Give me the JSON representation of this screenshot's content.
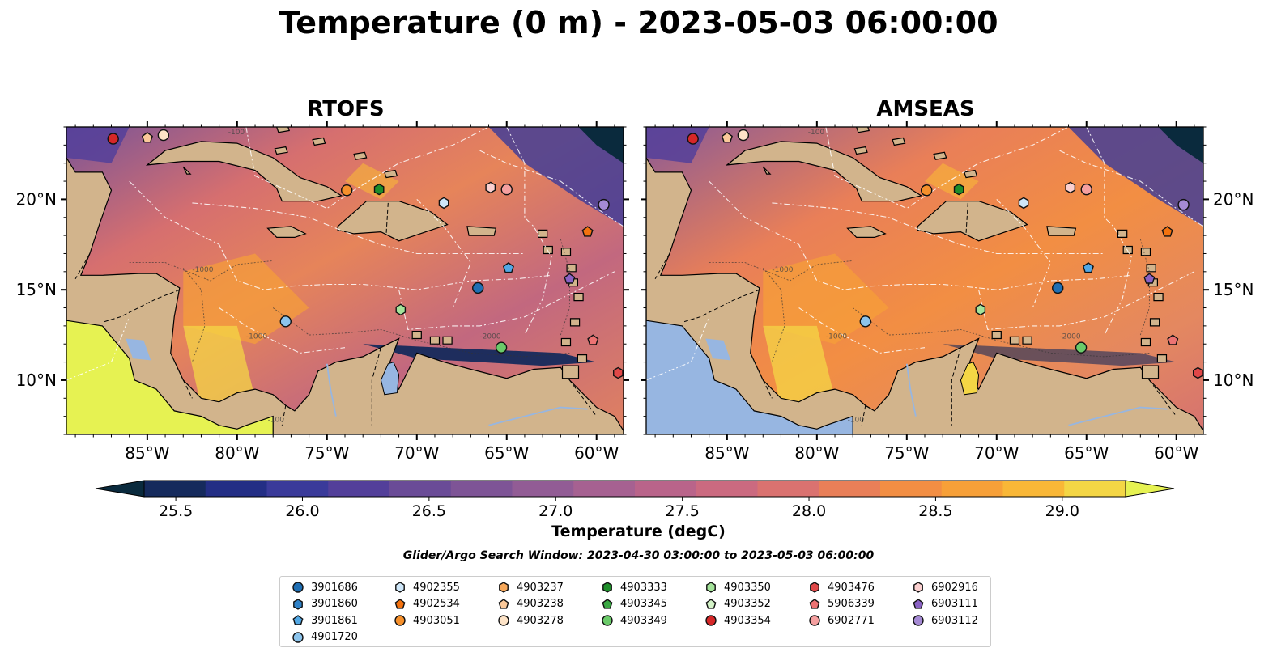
{
  "figure": {
    "title": "Temperature (0 m) - 2023-05-03 06:00:00",
    "panels": [
      {
        "title": "RTOFS"
      },
      {
        "title": "AMSEAS"
      }
    ],
    "lon_ticks": [
      "85°W",
      "80°W",
      "75°W",
      "70°W",
      "65°W",
      "60°W"
    ],
    "lat_ticks": [
      "20°N",
      "15°N",
      "10°N"
    ],
    "extent": {
      "lon": [
        -89.5,
        -58.5
      ],
      "lat": [
        7,
        24
      ]
    },
    "contour_labels": [
      "-100",
      "-1000",
      "-2000"
    ],
    "colorbar": {
      "label": "Temperature (degC)",
      "ticks": [
        "25.5",
        "26.0",
        "26.5",
        "27.0",
        "27.5",
        "28.0",
        "28.5",
        "29.0"
      ],
      "range": [
        25.375,
        29.25
      ],
      "extend": "both",
      "colors": [
        "#0a2a3d",
        "#152a5c",
        "#232e85",
        "#3a3a9a",
        "#533f9a",
        "#6a4b97",
        "#7e5496",
        "#925c95",
        "#a66191",
        "#b9648a",
        "#cb6a80",
        "#da7270",
        "#e97f58",
        "#f28e43",
        "#f7a038",
        "#f9b737",
        "#f4d645",
        "#e6f252"
      ]
    },
    "search_window": "Glider/Argo Search Window: 2023-04-30 03:00:00 to 2023-05-03 06:00:00",
    "colors": {
      "land": "#d2b48c",
      "lakes": "#97b6e1",
      "ocean_mid": "#8a5a96"
    }
  },
  "legend": [
    {
      "id": "3901686",
      "marker": "circle",
      "color": "#1f6fb4"
    },
    {
      "id": "3901860",
      "marker": "hexagon",
      "color": "#2f82c8"
    },
    {
      "id": "3901861",
      "marker": "pentagon",
      "color": "#52a8e5"
    },
    {
      "id": "4901720",
      "marker": "circle",
      "color": "#8cc4ec"
    },
    {
      "id": "4902355",
      "marker": "hexagon",
      "color": "#cfe7f9"
    },
    {
      "id": "4902534",
      "marker": "pentagon",
      "color": "#f4720e"
    },
    {
      "id": "4903051",
      "marker": "circle",
      "color": "#f6902b"
    },
    {
      "id": "4903237",
      "marker": "hexagon",
      "color": "#f7a85a"
    },
    {
      "id": "4903238",
      "marker": "pentagon",
      "color": "#fbc99a"
    },
    {
      "id": "4903278",
      "marker": "circle",
      "color": "#fde3c7"
    },
    {
      "id": "4903333",
      "marker": "hexagon",
      "color": "#1e8e2a"
    },
    {
      "id": "4903345",
      "marker": "pentagon",
      "color": "#3aa843"
    },
    {
      "id": "4903349",
      "marker": "circle",
      "color": "#6bcb6a"
    },
    {
      "id": "4903350",
      "marker": "hexagon",
      "color": "#a4e39a"
    },
    {
      "id": "4903352",
      "marker": "pentagon",
      "color": "#d4f4c8"
    },
    {
      "id": "4903354",
      "marker": "circle",
      "color": "#d62728"
    },
    {
      "id": "4903476",
      "marker": "hexagon",
      "color": "#e04848"
    },
    {
      "id": "5906339",
      "marker": "pentagon",
      "color": "#ec7373"
    },
    {
      "id": "6902771",
      "marker": "circle",
      "color": "#f5a0a0"
    },
    {
      "id": "6902916",
      "marker": "hexagon",
      "color": "#fbd0d0"
    },
    {
      "id": "6903111",
      "marker": "pentagon",
      "color": "#8a62c4"
    },
    {
      "id": "6903112",
      "marker": "circle",
      "color": "#a58ad4"
    }
  ],
  "floats": [
    {
      "id": "4903354",
      "lon": -86.9,
      "lat": 23.35
    },
    {
      "id": "4903238",
      "lon": -85.0,
      "lat": 23.4
    },
    {
      "id": "4903278",
      "lon": -84.1,
      "lat": 23.55
    },
    {
      "id": "4903051",
      "lon": -73.9,
      "lat": 20.5
    },
    {
      "id": "4903333",
      "lon": -72.1,
      "lat": 20.55
    },
    {
      "id": "4902355",
      "lon": -68.5,
      "lat": 19.8
    },
    {
      "id": "6902916",
      "lon": -65.9,
      "lat": 20.65
    },
    {
      "id": "6902771",
      "lon": -65.0,
      "lat": 20.55
    },
    {
      "id": "6903112",
      "lon": -59.6,
      "lat": 19.7
    },
    {
      "id": "4902534",
      "lon": -60.5,
      "lat": 18.2
    },
    {
      "id": "3901861",
      "lon": -64.9,
      "lat": 16.2
    },
    {
      "id": "6903111",
      "lon": -61.5,
      "lat": 15.6
    },
    {
      "id": "3901686",
      "lon": -66.6,
      "lat": 15.1
    },
    {
      "id": "4903350",
      "lon": -70.9,
      "lat": 13.9
    },
    {
      "id": "4901720",
      "lon": -77.3,
      "lat": 13.25
    },
    {
      "id": "4903349",
      "lon": -65.3,
      "lat": 11.8
    },
    {
      "id": "5906339",
      "lon": -60.2,
      "lat": 12.2
    },
    {
      "id": "4903476",
      "lon": -58.8,
      "lat": 10.4
    }
  ]
}
